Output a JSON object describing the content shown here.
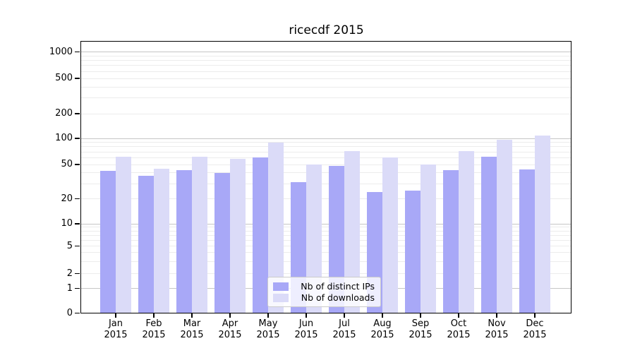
{
  "title": "ricecdf 2015",
  "chart_data": {
    "type": "bar",
    "title": "ricecdf 2015",
    "categories": [
      "Jan 2015",
      "Feb 2015",
      "Mar 2015",
      "Apr 2015",
      "May 2015",
      "Jun 2015",
      "Jul 2015",
      "Aug 2015",
      "Sep 2015",
      "Oct 2015",
      "Nov 2015",
      "Dec 2015"
    ],
    "x_tick_months": [
      "Jan",
      "Feb",
      "Mar",
      "Apr",
      "May",
      "Jun",
      "Jul",
      "Aug",
      "Sep",
      "Oct",
      "Nov",
      "Dec"
    ],
    "x_tick_year": "2015",
    "series": [
      {
        "name": "Nb of distinct IPs",
        "color": "#a8a8f7",
        "values": [
          42,
          37,
          43,
          40,
          60,
          31,
          48,
          24,
          25,
          43,
          61,
          44
        ]
      },
      {
        "name": "Nb of downloads",
        "color": "#dbdbf8",
        "values": [
          62,
          45,
          62,
          58,
          89,
          50,
          71,
          60,
          50,
          71,
          97,
          108
        ]
      }
    ],
    "y_axis": {
      "scale": "symlog",
      "ticks": [
        0,
        1,
        2,
        5,
        10,
        20,
        50,
        100,
        200,
        500,
        1000
      ],
      "range": [
        0,
        1000
      ],
      "minor_gridlines": [
        3,
        4,
        6,
        7,
        8,
        9,
        30,
        40,
        60,
        70,
        80,
        90,
        300,
        400,
        600,
        700,
        800,
        900
      ]
    },
    "grid": true,
    "legend_position": "lower center"
  },
  "colors": {
    "bar_dark": "#a8a8f7",
    "bar_light": "#dbdbf8",
    "grid_minor": "#ececec",
    "grid_major": "#c6c6c6"
  }
}
